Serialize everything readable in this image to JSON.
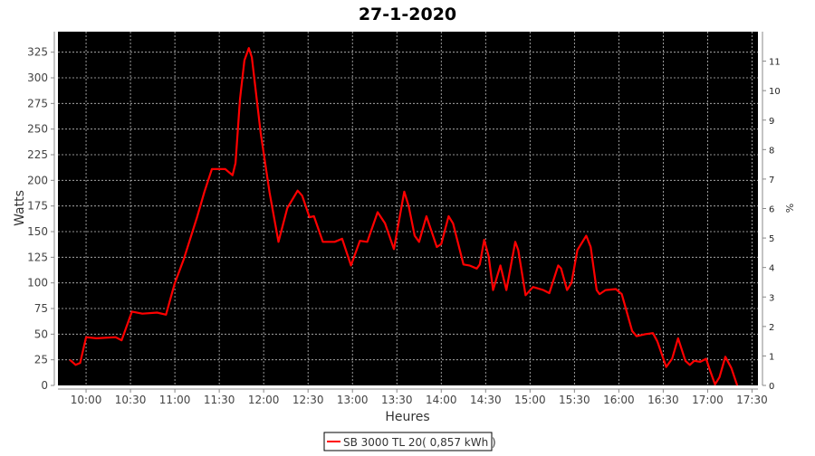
{
  "chart_data": {
    "type": "line",
    "title": "27-1-2020",
    "xlabel": "Heures",
    "ylabel": "Watts",
    "y2label": "%",
    "xlim": [
      "09:41",
      "17:34"
    ],
    "ylim": [
      0,
      345
    ],
    "y2lim": [
      0,
      12
    ],
    "grid": true,
    "background": "#000000",
    "grid_color": "#c0c0c0",
    "x_ticks": [
      "10:00",
      "10:30",
      "11:00",
      "11:30",
      "12:00",
      "12:30",
      "13:00",
      "13:30",
      "14:00",
      "14:30",
      "15:00",
      "15:30",
      "16:00",
      "16:30",
      "17:00",
      "17:30"
    ],
    "y_ticks": [
      "0",
      "25",
      "50",
      "75",
      "100",
      "125",
      "150",
      "175",
      "200",
      "225",
      "250",
      "275",
      "300",
      "325"
    ],
    "y2_ticks": [
      "0",
      "1",
      "2",
      "3",
      "4",
      "5",
      "6",
      "7",
      "8",
      "9",
      "10",
      "11"
    ],
    "legend": {
      "placement": "bottom"
    },
    "series": [
      {
        "name": "SB 3000 TL 20( 0,857 kWh )",
        "color": "#ff0000",
        "points": [
          [
            "09:49",
            25
          ],
          [
            "09:53",
            20
          ],
          [
            "09:56",
            22
          ],
          [
            "10:00",
            47
          ],
          [
            "10:07",
            46
          ],
          [
            "10:20",
            47
          ],
          [
            "10:24",
            44
          ],
          [
            "10:31",
            72
          ],
          [
            "10:38",
            70
          ],
          [
            "10:48",
            71
          ],
          [
            "10:54",
            69
          ],
          [
            "11:00",
            100
          ],
          [
            "11:06",
            123
          ],
          [
            "11:15",
            164
          ],
          [
            "11:20",
            189
          ],
          [
            "11:25",
            211
          ],
          [
            "11:34",
            211
          ],
          [
            "11:39",
            205
          ],
          [
            "11:41",
            217
          ],
          [
            "11:44",
            279
          ],
          [
            "11:47",
            317
          ],
          [
            "11:50",
            329
          ],
          [
            "11:52",
            320
          ],
          [
            "11:58",
            246
          ],
          [
            "12:04",
            188
          ],
          [
            "12:10",
            140
          ],
          [
            "12:16",
            173
          ],
          [
            "12:23",
            190
          ],
          [
            "12:26",
            185
          ],
          [
            "12:31",
            164
          ],
          [
            "12:34",
            165
          ],
          [
            "12:40",
            140
          ],
          [
            "12:48",
            140
          ],
          [
            "12:53",
            143
          ],
          [
            "12:59",
            117
          ],
          [
            "13:05",
            141
          ],
          [
            "13:10",
            140
          ],
          [
            "13:17",
            169
          ],
          [
            "13:22",
            158
          ],
          [
            "13:28",
            133
          ],
          [
            "13:35",
            189
          ],
          [
            "13:38",
            175
          ],
          [
            "13:42",
            146
          ],
          [
            "13:45",
            140
          ],
          [
            "13:50",
            165
          ],
          [
            "13:57",
            135
          ],
          [
            "14:00",
            138
          ],
          [
            "14:05",
            165
          ],
          [
            "14:08",
            158
          ],
          [
            "14:15",
            118
          ],
          [
            "14:19",
            117
          ],
          [
            "14:24",
            114
          ],
          [
            "14:26",
            118
          ],
          [
            "14:29",
            142
          ],
          [
            "14:32",
            126
          ],
          [
            "14:35",
            93
          ],
          [
            "14:40",
            117
          ],
          [
            "14:44",
            93
          ],
          [
            "14:50",
            140
          ],
          [
            "14:52",
            132
          ],
          [
            "14:57",
            88
          ],
          [
            "15:02",
            96
          ],
          [
            "15:09",
            93
          ],
          [
            "15:13",
            90
          ],
          [
            "15:19",
            117
          ],
          [
            "15:21",
            114
          ],
          [
            "15:25",
            93
          ],
          [
            "15:28",
            100
          ],
          [
            "15:32",
            132
          ],
          [
            "15:38",
            146
          ],
          [
            "15:41",
            135
          ],
          [
            "15:45",
            93
          ],
          [
            "15:47",
            89
          ],
          [
            "15:51",
            93
          ],
          [
            "15:58",
            94
          ],
          [
            "16:02",
            89
          ],
          [
            "16:09",
            53
          ],
          [
            "16:12",
            48
          ],
          [
            "16:18",
            50
          ],
          [
            "16:23",
            51
          ],
          [
            "16:26",
            43
          ],
          [
            "16:32",
            18
          ],
          [
            "16:36",
            26
          ],
          [
            "16:40",
            46
          ],
          [
            "16:45",
            24
          ],
          [
            "16:48",
            20
          ],
          [
            "16:51",
            24
          ],
          [
            "16:55",
            23
          ],
          [
            "16:59",
            26
          ],
          [
            "17:01",
            17
          ],
          [
            "17:05",
            1
          ],
          [
            "17:08",
            8
          ],
          [
            "17:12",
            28
          ],
          [
            "17:16",
            17
          ],
          [
            "17:20",
            0
          ]
        ]
      }
    ]
  }
}
